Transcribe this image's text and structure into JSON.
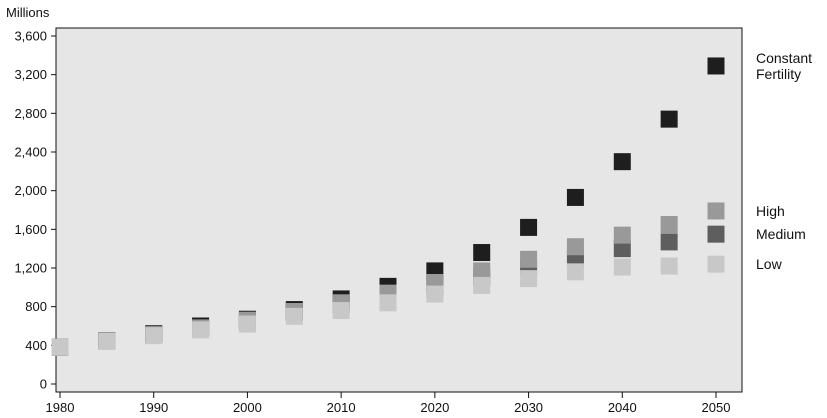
{
  "chart_data": {
    "type": "scatter",
    "title": "",
    "ylabel": "Millions",
    "xlabel": "",
    "xlim": [
      1978,
      2053
    ],
    "ylim": [
      0,
      3600
    ],
    "x_ticks": [
      "1980",
      "1990",
      "2000",
      "2010",
      "2020",
      "2030",
      "2040",
      "2050"
    ],
    "y_ticks": [
      "0",
      "400",
      "800",
      "1,200",
      "1,600",
      "2,000",
      "2,400",
      "2,800",
      "3,200",
      "3,600"
    ],
    "x": [
      1980,
      1985,
      1990,
      1995,
      2000,
      2005,
      2010,
      2015,
      2020,
      2025,
      2030,
      2035,
      2040,
      2045,
      2050
    ],
    "series": [
      {
        "name": "Constant Fertility",
        "legend_lines": [
          "Constant",
          "Fertility"
        ],
        "color": "#1e1e1e",
        "values": [
          380,
          450,
          520,
          600,
          670,
          770,
          880,
          1010,
          1170,
          1360,
          1620,
          1930,
          2300,
          2740,
          3290
        ]
      },
      {
        "name": "Medium",
        "legend_lines": [
          "Medium"
        ],
        "color": "#5e5e5e",
        "values": [
          380,
          450,
          510,
          580,
          650,
          740,
          820,
          910,
          1010,
          1110,
          1210,
          1310,
          1400,
          1470,
          1550
        ]
      },
      {
        "name": "High",
        "legend_lines": [
          "High"
        ],
        "color": "#999999",
        "values": [
          380,
          450,
          510,
          580,
          660,
          750,
          840,
          940,
          1050,
          1170,
          1290,
          1420,
          1540,
          1650,
          1790
        ]
      },
      {
        "name": "Low",
        "legend_lines": [
          "Low"
        ],
        "color": "#c8c8c8",
        "values": [
          380,
          440,
          500,
          560,
          620,
          700,
          760,
          840,
          930,
          1020,
          1090,
          1160,
          1210,
          1220,
          1240
        ]
      }
    ],
    "grid": false,
    "legend_position": "right",
    "plot_background": "#e6e6e6"
  }
}
